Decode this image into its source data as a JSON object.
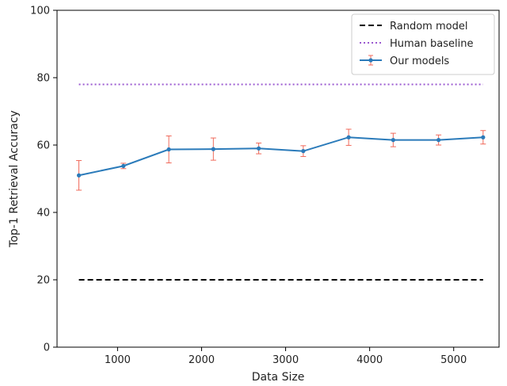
{
  "chart_data": {
    "type": "line",
    "xlabel": "Data Size",
    "ylabel": "Top-1 Retrieval Accuracy",
    "xlim": [
      280,
      5540
    ],
    "ylim": [
      0,
      100
    ],
    "xticks": [
      1000,
      2000,
      3000,
      4000,
      5000
    ],
    "yticks": [
      0,
      20,
      40,
      60,
      80,
      100
    ],
    "grid": false,
    "legend_position": "top-right",
    "series": [
      {
        "name": "Random model",
        "style": "dashed",
        "color": "#000000",
        "x": [
          540,
          5350
        ],
        "y": [
          20,
          20
        ]
      },
      {
        "name": "Human baseline",
        "style": "dotted",
        "color": "#9b59d0",
        "x": [
          540,
          5350
        ],
        "y": [
          78,
          78
        ]
      },
      {
        "name": "Our models",
        "style": "solid-markers",
        "color": "#2b7bba",
        "error_color": "#f0695a",
        "x": [
          540,
          1070,
          1610,
          2140,
          2680,
          3210,
          3750,
          4280,
          4820,
          5350
        ],
        "y": [
          51.0,
          53.8,
          58.7,
          58.8,
          59.0,
          58.2,
          62.3,
          61.5,
          61.5,
          62.3
        ],
        "yerr": [
          4.4,
          0.8,
          4.0,
          3.3,
          1.6,
          1.6,
          2.4,
          2.0,
          1.5,
          2.0
        ]
      }
    ]
  }
}
